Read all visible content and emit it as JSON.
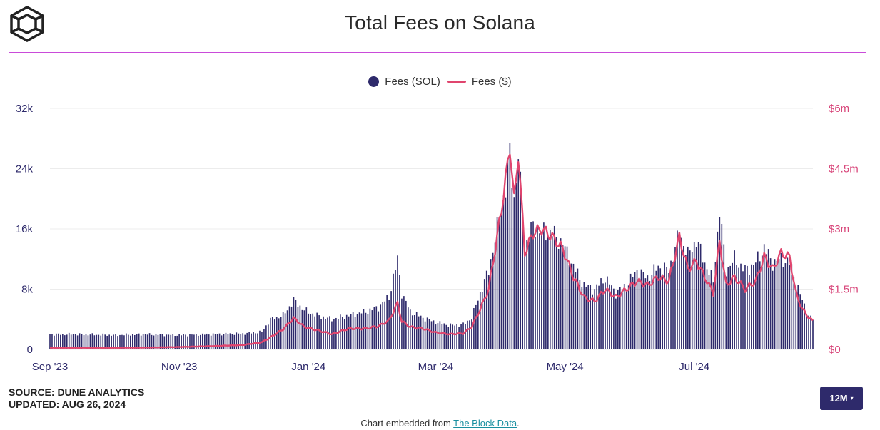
{
  "title": "Total Fees on Solana",
  "legend": {
    "sol_label": "Fees (SOL)",
    "usd_label": "Fees ($)"
  },
  "source": {
    "line1": "SOURCE: DUNE ANALYTICS",
    "line2": "UPDATED: AUG 26, 2024"
  },
  "range_button": {
    "label": "12M",
    "caret": "▾"
  },
  "embed": {
    "prefix": "Chart embedded from ",
    "link": "The Block Data",
    "suffix": "."
  },
  "colors": {
    "bars": "#2e2a6b",
    "line": "#e0456e",
    "title_rule": "#c94bd9",
    "grid": "#ececec"
  },
  "icons": {
    "logo": "the-block-cube-logo"
  },
  "chart_data": {
    "type": "bar+line",
    "x_range": [
      "Sep 1 '23",
      "Aug 26 '24"
    ],
    "x_tick_labels": [
      "Sep '23",
      "Nov '23",
      "Jan '24",
      "Mar '24",
      "May '24",
      "Jul '24"
    ],
    "left_axis": {
      "label": "Fees (SOL)",
      "ticks": [
        "0",
        "8k",
        "16k",
        "24k",
        "32k"
      ],
      "range": [
        0,
        32000
      ]
    },
    "right_axis": {
      "label": "Fees ($)",
      "ticks": [
        "$0",
        "$1.5m",
        "$3m",
        "$4.5m",
        "$6m"
      ],
      "range": [
        0,
        6000000
      ]
    },
    "grid": true,
    "legend_position": "top-center",
    "series": [
      {
        "name": "Fees (SOL)",
        "kind": "bar",
        "axis": "left",
        "points": [
          [
            "Sep 1 '23",
            2000
          ],
          [
            "Sep 15 '23",
            2000
          ],
          [
            "Oct 1 '23",
            1900
          ],
          [
            "Oct 15 '23",
            2000
          ],
          [
            "Nov 1 '23",
            1900
          ],
          [
            "Nov 15 '23",
            2000
          ],
          [
            "Dec 1 '23",
            2100
          ],
          [
            "Dec 10 '23",
            2300
          ],
          [
            "Dec 14 '23",
            4000
          ],
          [
            "Dec 20 '23",
            4500
          ],
          [
            "Dec 25 '23",
            6500
          ],
          [
            "Dec 30 '23",
            5200
          ],
          [
            "Jan 5 '24",
            4500
          ],
          [
            "Jan 12 '24",
            4000
          ],
          [
            "Jan 20 '24",
            4500
          ],
          [
            "Jan 28 '24",
            5000
          ],
          [
            "Feb 3 '24",
            5600
          ],
          [
            "Feb 8 '24",
            7000
          ],
          [
            "Feb 12 '24",
            12000
          ],
          [
            "Feb 14 '24",
            7500
          ],
          [
            "Feb 18 '24",
            5000
          ],
          [
            "Feb 24 '24",
            4200
          ],
          [
            "Mar 1 '24",
            3600
          ],
          [
            "Mar 8 '24",
            3200
          ],
          [
            "Mar 14 '24",
            3300
          ],
          [
            "Mar 18 '24",
            4200
          ],
          [
            "Mar 22 '24",
            7500
          ],
          [
            "Mar 26 '24",
            10500
          ],
          [
            "Mar 30 '24",
            16000
          ],
          [
            "Apr 3 '24",
            21500
          ],
          [
            "Apr 5 '24",
            26000
          ],
          [
            "Apr 7 '24",
            20000
          ],
          [
            "Apr 9 '24",
            25500
          ],
          [
            "Apr 12 '24",
            13500
          ],
          [
            "Apr 16 '24",
            16500
          ],
          [
            "Apr 20 '24",
            15500
          ],
          [
            "Apr 25 '24",
            15500
          ],
          [
            "Apr 30 '24",
            14000
          ],
          [
            "May 5 '24",
            11000
          ],
          [
            "May 10 '24",
            8500
          ],
          [
            "May 15 '24",
            8000
          ],
          [
            "May 20 '24",
            9500
          ],
          [
            "May 25 '24",
            7500
          ],
          [
            "May 30 '24",
            8500
          ],
          [
            "Jun 4 '24",
            10500
          ],
          [
            "Jun 9 '24",
            9500
          ],
          [
            "Jun 14 '24",
            11000
          ],
          [
            "Jun 19 '24",
            10500
          ],
          [
            "Jun 24 '24",
            15500
          ],
          [
            "Jun 28 '24",
            12500
          ],
          [
            "Jul 2 '24",
            14500
          ],
          [
            "Jul 6 '24",
            11500
          ],
          [
            "Jul 10 '24",
            9000
          ],
          [
            "Jul 13 '24",
            18500
          ],
          [
            "Jul 16 '24",
            10500
          ],
          [
            "Jul 20 '24",
            12000
          ],
          [
            "Jul 25 '24",
            10500
          ],
          [
            "Jul 30 '24",
            11500
          ],
          [
            "Aug 3 '24",
            13500
          ],
          [
            "Aug 7 '24",
            11500
          ],
          [
            "Aug 11 '24",
            12000
          ],
          [
            "Aug 15 '24",
            11500
          ],
          [
            "Aug 18 '24",
            9000
          ],
          [
            "Aug 21 '24",
            6500
          ],
          [
            "Aug 24 '24",
            4500
          ],
          [
            "Aug 26 '24",
            4000
          ]
        ]
      },
      {
        "name": "Fees ($)",
        "kind": "line",
        "axis": "right",
        "points": [
          [
            "Sep 1 '23",
            40000
          ],
          [
            "Sep 15 '23",
            40000
          ],
          [
            "Oct 1 '23",
            40000
          ],
          [
            "Oct 15 '23",
            45000
          ],
          [
            "Nov 1 '23",
            60000
          ],
          [
            "Nov 15 '23",
            80000
          ],
          [
            "Dec 1 '23",
            110000
          ],
          [
            "Dec 10 '23",
            180000
          ],
          [
            "Dec 14 '23",
            300000
          ],
          [
            "Dec 20 '23",
            500000
          ],
          [
            "Dec 25 '23",
            780000
          ],
          [
            "Dec 30 '23",
            560000
          ],
          [
            "Jan 5 '24",
            480000
          ],
          [
            "Jan 12 '24",
            380000
          ],
          [
            "Jan 20 '24",
            520000
          ],
          [
            "Jan 28 '24",
            520000
          ],
          [
            "Feb 3 '24",
            580000
          ],
          [
            "Feb 8 '24",
            720000
          ],
          [
            "Feb 12 '24",
            1150000
          ],
          [
            "Feb 14 '24",
            700000
          ],
          [
            "Feb 18 '24",
            560000
          ],
          [
            "Feb 24 '24",
            520000
          ],
          [
            "Mar 1 '24",
            420000
          ],
          [
            "Mar 8 '24",
            380000
          ],
          [
            "Mar 14 '24",
            400000
          ],
          [
            "Mar 18 '24",
            560000
          ],
          [
            "Mar 22 '24",
            1000000
          ],
          [
            "Mar 26 '24",
            1500000
          ],
          [
            "Mar 30 '24",
            2800000
          ],
          [
            "Apr 3 '24",
            4200000
          ],
          [
            "Apr 5 '24",
            5100000
          ],
          [
            "Apr 7 '24",
            3700000
          ],
          [
            "Apr 9 '24",
            4900000
          ],
          [
            "Apr 12 '24",
            2400000
          ],
          [
            "Apr 16 '24",
            2900000
          ],
          [
            "Apr 20 '24",
            3000000
          ],
          [
            "Apr 25 '24",
            2800000
          ],
          [
            "Apr 30 '24",
            2500000
          ],
          [
            "May 5 '24",
            1800000
          ],
          [
            "May 10 '24",
            1300000
          ],
          [
            "May 15 '24",
            1200000
          ],
          [
            "May 20 '24",
            1500000
          ],
          [
            "May 25 '24",
            1300000
          ],
          [
            "May 30 '24",
            1500000
          ],
          [
            "Jun 4 '24",
            1700000
          ],
          [
            "Jun 9 '24",
            1600000
          ],
          [
            "Jun 14 '24",
            1800000
          ],
          [
            "Jun 19 '24",
            1700000
          ],
          [
            "Jun 24 '24",
            2800000
          ],
          [
            "Jun 28 '24",
            2000000
          ],
          [
            "Jul 2 '24",
            2200000
          ],
          [
            "Jul 6 '24",
            1800000
          ],
          [
            "Jul 10 '24",
            1400000
          ],
          [
            "Jul 13 '24",
            2700000
          ],
          [
            "Jul 16 '24",
            1600000
          ],
          [
            "Jul 20 '24",
            1800000
          ],
          [
            "Jul 25 '24",
            1500000
          ],
          [
            "Jul 30 '24",
            1700000
          ],
          [
            "Aug 3 '24",
            2300000
          ],
          [
            "Aug 7 '24",
            2000000
          ],
          [
            "Aug 11 '24",
            2400000
          ],
          [
            "Aug 15 '24",
            2300000
          ],
          [
            "Aug 18 '24",
            1400000
          ],
          [
            "Aug 21 '24",
            1000000
          ],
          [
            "Aug 24 '24",
            800000
          ],
          [
            "Aug 26 '24",
            700000
          ]
        ]
      }
    ]
  }
}
